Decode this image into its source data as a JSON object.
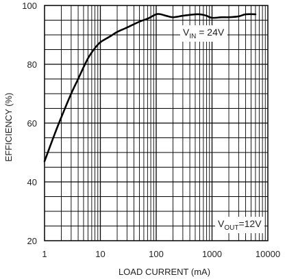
{
  "chart_data": {
    "type": "line",
    "title": "",
    "xlabel": "LOAD CURRENT (mA)",
    "ylabel": "EFFICIENCY (%)",
    "xscale": "log",
    "xlim": [
      1,
      10000
    ],
    "ylim": [
      20,
      100
    ],
    "grid": true,
    "x_ticks": [
      1,
      10,
      100,
      1000,
      10000
    ],
    "x_tick_labels": [
      "1",
      "10",
      "100",
      "1000",
      "10000"
    ],
    "y_ticks": [
      20,
      40,
      60,
      80,
      100
    ],
    "y_tick_labels": [
      "20",
      "40",
      "60",
      "80",
      "100"
    ],
    "line_color": "#000000",
    "series": [
      {
        "x": [
          1,
          1.5,
          2,
          3,
          4,
          5,
          6,
          7,
          8,
          10,
          15,
          20,
          30,
          50,
          70,
          100,
          120,
          150,
          200,
          300,
          400,
          500,
          600,
          700,
          800,
          1000,
          1500,
          2000,
          3000,
          4000,
          6000
        ],
        "y": [
          47,
          56,
          62,
          70,
          75,
          79,
          82,
          84,
          85.5,
          87.5,
          89.5,
          91,
          92.5,
          94.5,
          95.5,
          97,
          97,
          96.5,
          96,
          96.5,
          96.8,
          97,
          97,
          96.8,
          96.5,
          95.8,
          96,
          96,
          96.3,
          97,
          97
        ]
      }
    ],
    "annotations": [
      {
        "main": "V",
        "sub": "IN",
        "rest": " = 24V"
      },
      {
        "main": "V",
        "sub": "OUT",
        "rest": "=12V"
      }
    ]
  }
}
